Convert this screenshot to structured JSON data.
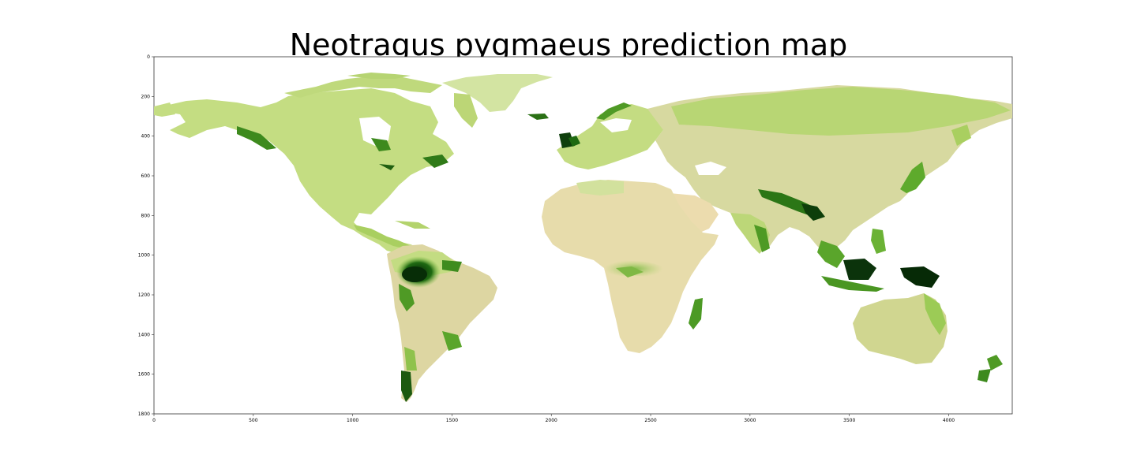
{
  "title": "Neotragus pygmaeus prediction map",
  "axes": {
    "x_ticks": [
      "0",
      "500",
      "1000",
      "1500",
      "2000",
      "2500",
      "3000",
      "3500",
      "4000"
    ],
    "y_ticks": [
      "0",
      "200",
      "400",
      "600",
      "800",
      "1000",
      "1200",
      "1400",
      "1600",
      "1800"
    ],
    "x_values": [
      0,
      500,
      1000,
      1500,
      2000,
      2500,
      3000,
      3500,
      4000
    ],
    "y_values": [
      0,
      200,
      400,
      600,
      800,
      1000,
      1200,
      1400,
      1600,
      1800
    ],
    "xlim": [
      0,
      4320
    ],
    "ylim": [
      1800,
      0
    ]
  },
  "colors": {
    "land_low": "#ecdcae",
    "land_mid": "#b8d870",
    "land_high": "#5fae2c",
    "land_peak": "#0b3a0b",
    "ocean": "#ffffff"
  }
}
